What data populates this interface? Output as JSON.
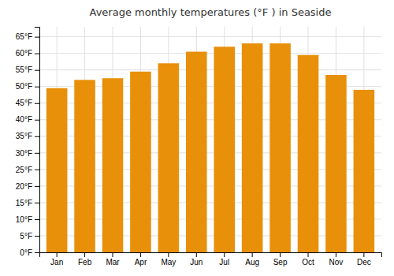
{
  "chart_data": {
    "type": "bar",
    "title": "Average monthly temperatures (°F ) in Seaside",
    "categories": [
      "Jan",
      "Feb",
      "Mar",
      "Apr",
      "May",
      "Jun",
      "Jul",
      "Aug",
      "Sep",
      "Oct",
      "Nov",
      "Dec"
    ],
    "values": [
      49.5,
      52.0,
      52.5,
      54.5,
      57.0,
      60.5,
      62.0,
      63.0,
      63.0,
      59.5,
      53.5,
      49.0
    ],
    "color": "#E8900A",
    "ylim": [
      0,
      68
    ],
    "yticks": [
      {
        "value": 0,
        "label": "0°F"
      },
      {
        "value": 5,
        "label": "5°F"
      },
      {
        "value": 10,
        "label": "10°F"
      },
      {
        "value": 15,
        "label": "15°F"
      },
      {
        "value": 20,
        "label": "20°F"
      },
      {
        "value": 25,
        "label": "25°F"
      },
      {
        "value": 30,
        "label": "30°F"
      },
      {
        "value": 35,
        "label": "35°F"
      },
      {
        "value": 40,
        "label": "40°F"
      },
      {
        "value": 45,
        "label": "45°F"
      },
      {
        "value": 50,
        "label": "50°F"
      },
      {
        "value": 55,
        "label": "55°F"
      },
      {
        "value": 60,
        "label": "60°F"
      },
      {
        "value": 65,
        "label": "65°F"
      }
    ],
    "grid": true
  }
}
